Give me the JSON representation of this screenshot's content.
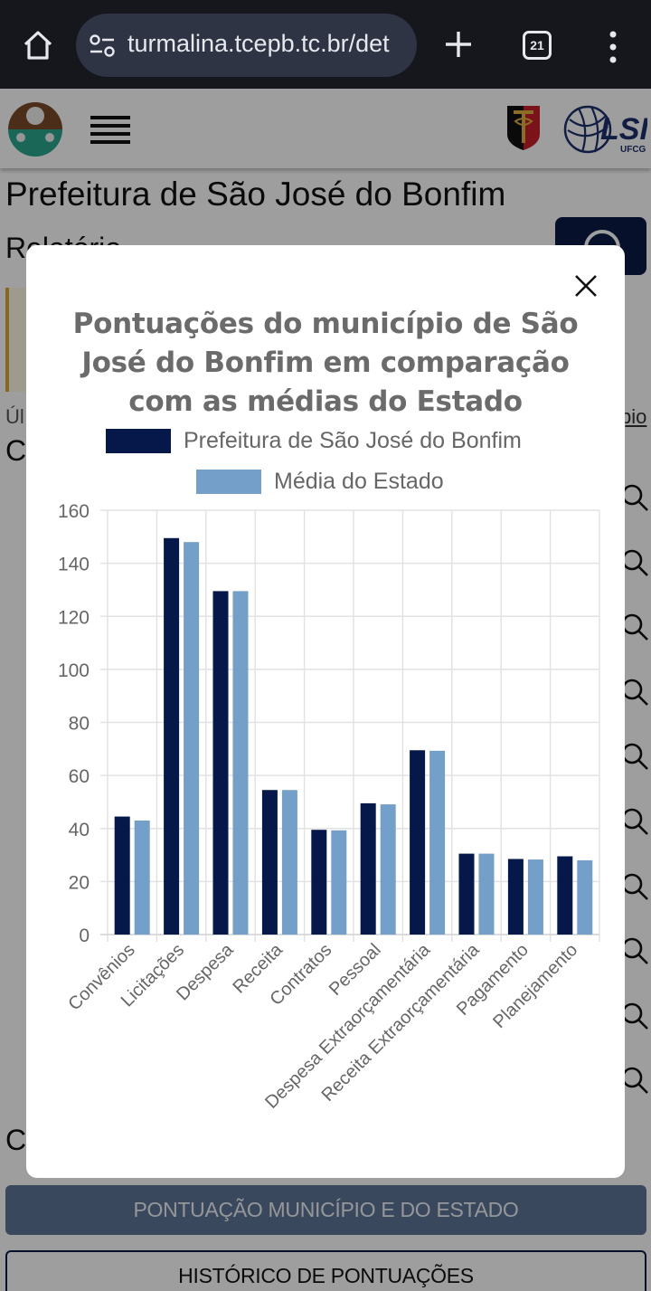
{
  "browser": {
    "url": "turmalina.tcepb.tc.br/det",
    "tab_count": "21"
  },
  "page": {
    "title": "Prefeitura de São José do Bonfim",
    "subtitle": "Relatório",
    "last_update_fragment": "Úl",
    "link_fragment": "pio",
    "section_letter": "C",
    "section_letter_2": "C",
    "buttons": {
      "score": "PONTUAÇÃO MUNICÍPIO E DO ESTADO",
      "history": "HISTÓRICO DE PONTUAÇÕES"
    },
    "search_icon_count": 10
  },
  "colors": {
    "municipio": "#06184a",
    "estado": "#739fc8",
    "title": "#6b6b6b"
  },
  "chart_data": {
    "type": "bar",
    "title_lines": [
      "Pontuações do município de São",
      "José do Bonfim em comparação",
      "com as médias do Estado"
    ],
    "title": "Pontuações do município de São José do Bonfim em comparação com as médias do Estado",
    "legend": [
      "Prefeitura de São José do Bonfim",
      "Média do Estado"
    ],
    "legend_placement": "top",
    "categories": [
      "Convênios",
      "Licitações",
      "Despesa",
      "Receita",
      "Contratos",
      "Pessoal",
      "Despesa Extraorçamentária",
      "Receita Extraorçamentária",
      "Pagamento",
      "Planejamento"
    ],
    "series": [
      {
        "name": "Prefeitura de São José do Bonfim",
        "values": [
          44.5,
          149.5,
          129.5,
          54.5,
          39.5,
          49.5,
          69.5,
          30.5,
          28.5,
          29.5
        ]
      },
      {
        "name": "Média do Estado",
        "values": [
          43,
          148,
          129.5,
          54.5,
          39.3,
          49.1,
          69.3,
          30.5,
          28.3,
          28
        ]
      }
    ],
    "yticks": [
      0,
      20,
      40,
      60,
      80,
      100,
      120,
      140,
      160
    ],
    "ylim": [
      0,
      160
    ],
    "xlabel": "",
    "ylabel": "",
    "grid": true
  }
}
